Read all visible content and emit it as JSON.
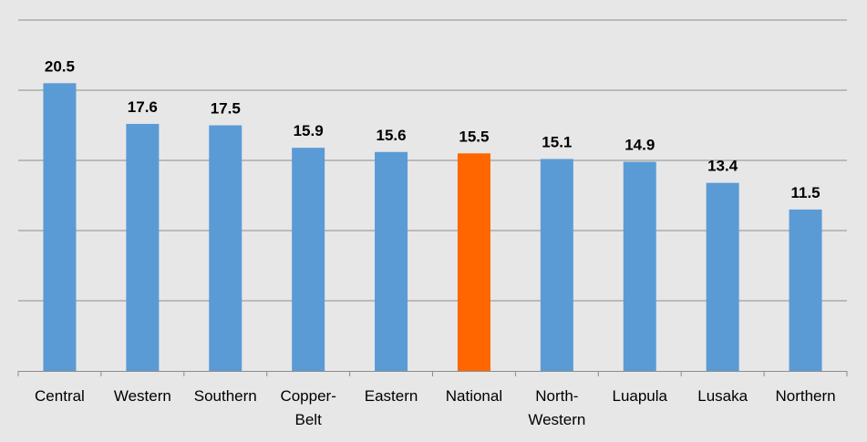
{
  "chart_data": {
    "type": "bar",
    "title": "",
    "xlabel": "",
    "ylabel": "",
    "ylim": [
      0,
      25
    ],
    "grid": true,
    "legend": "none",
    "categories": [
      [
        "Central"
      ],
      [
        "Western"
      ],
      [
        "Southern"
      ],
      [
        "Copper-",
        "Belt"
      ],
      [
        "Eastern"
      ],
      [
        "National"
      ],
      [
        "North-",
        "Western"
      ],
      [
        "Luapula"
      ],
      [
        "Lusaka"
      ],
      [
        "Northern"
      ]
    ],
    "values": [
      20.5,
      17.6,
      17.5,
      15.9,
      15.6,
      15.5,
      15.1,
      14.9,
      13.4,
      11.5
    ],
    "value_labels": [
      "20.5",
      "17.6",
      "17.5",
      "15.9",
      "15.6",
      "15.5",
      "15.1",
      "14.9",
      "13.4",
      "11.5"
    ],
    "highlight_index": 5,
    "colors": {
      "bar": "#5b9bd5",
      "highlight": "#ff6600",
      "background": "#e7e7e7",
      "grid": "#8c8c8c",
      "axis": "#8c8c8c"
    }
  }
}
